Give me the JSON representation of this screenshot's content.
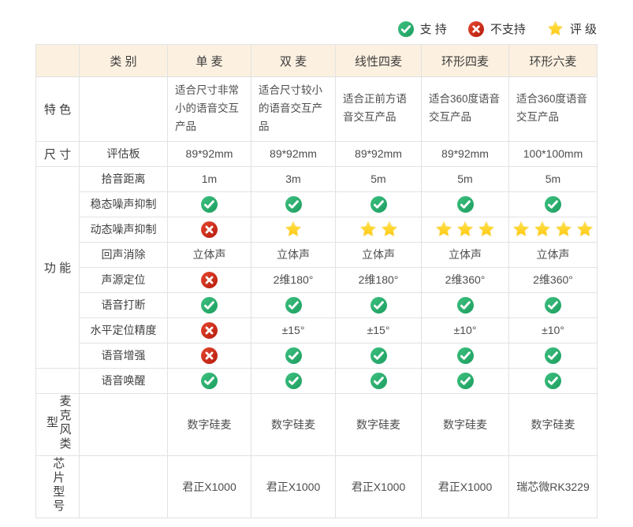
{
  "legend": {
    "items": [
      {
        "icon": "check",
        "label": "支 持"
      },
      {
        "icon": "cross",
        "label": "不支持"
      },
      {
        "icon": "star",
        "label": "评 级"
      }
    ]
  },
  "colors": {
    "header_bg": "#fcf0e0",
    "border": "#e2e2e2",
    "check_green_light": "#3dc07f",
    "check_green_dark": "#1d9e60",
    "cross_red_light": "#e4472f",
    "cross_red_dark": "#b71c0c",
    "star_gold": "#ffd319",
    "star_outline": "#f9edbb",
    "text": "#4d4d4d"
  },
  "table": {
    "header": {
      "corner": "",
      "category": "类 别",
      "columns": [
        "单 麦",
        "双 麦",
        "线性四麦",
        "环形四麦",
        "环形六麦"
      ]
    },
    "rows": [
      {
        "name": "features",
        "group": {
          "label": "特 色",
          "rowspan": 1
        },
        "label": "",
        "height": "feature",
        "align": "left",
        "cells": [
          {
            "t": "text",
            "v": "适合尺寸非常小的语音交互产品"
          },
          {
            "t": "text",
            "v": "适合尺寸较小的语音交互产品"
          },
          {
            "t": "text",
            "v": "适合正前方语音交互产品"
          },
          {
            "t": "text",
            "v": "适合360度语音交互产品"
          },
          {
            "t": "text",
            "v": "适合360度语音交互产品"
          }
        ]
      },
      {
        "name": "eval-board",
        "group": {
          "label": "尺 寸",
          "rowspan": 1
        },
        "label": "评估板",
        "cells": [
          {
            "t": "text",
            "v": "89*92mm"
          },
          {
            "t": "text",
            "v": "89*92mm"
          },
          {
            "t": "text",
            "v": "89*92mm"
          },
          {
            "t": "text",
            "v": "89*92mm"
          },
          {
            "t": "text",
            "v": "100*100mm"
          }
        ]
      },
      {
        "name": "pickup-distance",
        "group": {
          "label": "功 能",
          "rowspan": 8
        },
        "label": "拾音距离",
        "cells": [
          {
            "t": "text",
            "v": "1m"
          },
          {
            "t": "text",
            "v": "3m"
          },
          {
            "t": "text",
            "v": "5m"
          },
          {
            "t": "text",
            "v": "5m"
          },
          {
            "t": "text",
            "v": "5m"
          }
        ]
      },
      {
        "name": "steady-noise-suppression",
        "label": "稳态噪声抑制",
        "cells": [
          {
            "t": "check"
          },
          {
            "t": "check"
          },
          {
            "t": "check"
          },
          {
            "t": "check"
          },
          {
            "t": "check"
          }
        ]
      },
      {
        "name": "dynamic-noise-suppression",
        "label": "动态噪声抑制",
        "cells": [
          {
            "t": "cross"
          },
          {
            "t": "stars",
            "n": 1
          },
          {
            "t": "stars",
            "n": 2
          },
          {
            "t": "stars",
            "n": 3
          },
          {
            "t": "stars",
            "n": 4
          }
        ]
      },
      {
        "name": "echo-cancellation",
        "label": "回声消除",
        "cells": [
          {
            "t": "text",
            "v": "立体声"
          },
          {
            "t": "text",
            "v": "立体声"
          },
          {
            "t": "text",
            "v": "立体声"
          },
          {
            "t": "text",
            "v": "立体声"
          },
          {
            "t": "text",
            "v": "立体声"
          }
        ]
      },
      {
        "name": "sound-source-localization",
        "label": "声源定位",
        "cells": [
          {
            "t": "cross"
          },
          {
            "t": "text",
            "v": "2维180°"
          },
          {
            "t": "text",
            "v": "2维180°"
          },
          {
            "t": "text",
            "v": "2维360°"
          },
          {
            "t": "text",
            "v": "2维360°"
          }
        ]
      },
      {
        "name": "voice-interruption",
        "label": "语音打断",
        "cells": [
          {
            "t": "check"
          },
          {
            "t": "check"
          },
          {
            "t": "check"
          },
          {
            "t": "check"
          },
          {
            "t": "check"
          }
        ]
      },
      {
        "name": "horizontal-accuracy",
        "label": "水平定位精度",
        "cells": [
          {
            "t": "cross"
          },
          {
            "t": "text",
            "v": "±15°"
          },
          {
            "t": "text",
            "v": "±15°"
          },
          {
            "t": "text",
            "v": "±10°"
          },
          {
            "t": "text",
            "v": "±10°"
          }
        ]
      },
      {
        "name": "voice-enhancement",
        "label": "语音增强",
        "cells": [
          {
            "t": "cross"
          },
          {
            "t": "check"
          },
          {
            "t": "check"
          },
          {
            "t": "check"
          },
          {
            "t": "check"
          }
        ]
      },
      {
        "name": "voice-wakeup",
        "group": {
          "label": "",
          "rowspan": 1
        },
        "label": "语音唤醒",
        "cells": [
          {
            "t": "check"
          },
          {
            "t": "check"
          },
          {
            "t": "check"
          },
          {
            "t": "check"
          },
          {
            "t": "check"
          }
        ]
      },
      {
        "name": "mic-type",
        "group": {
          "label": "麦克风类型",
          "rowspan": 1,
          "vertical": true
        },
        "label": "",
        "height": "tall",
        "cells": [
          {
            "t": "text",
            "v": "数字硅麦"
          },
          {
            "t": "text",
            "v": "数字硅麦"
          },
          {
            "t": "text",
            "v": "数字硅麦"
          },
          {
            "t": "text",
            "v": "数字硅麦"
          },
          {
            "t": "text",
            "v": "数字硅麦"
          }
        ]
      },
      {
        "name": "chip-model",
        "group": {
          "label": "芯片型号",
          "rowspan": 1,
          "vertical": true
        },
        "label": "",
        "height": "tall",
        "cells": [
          {
            "t": "text",
            "v": "君正X1000"
          },
          {
            "t": "text",
            "v": "君正X1000"
          },
          {
            "t": "text",
            "v": "君正X1000"
          },
          {
            "t": "text",
            "v": "君正X1000"
          },
          {
            "t": "text",
            "v": "瑞芯微RK3229"
          }
        ]
      }
    ]
  }
}
